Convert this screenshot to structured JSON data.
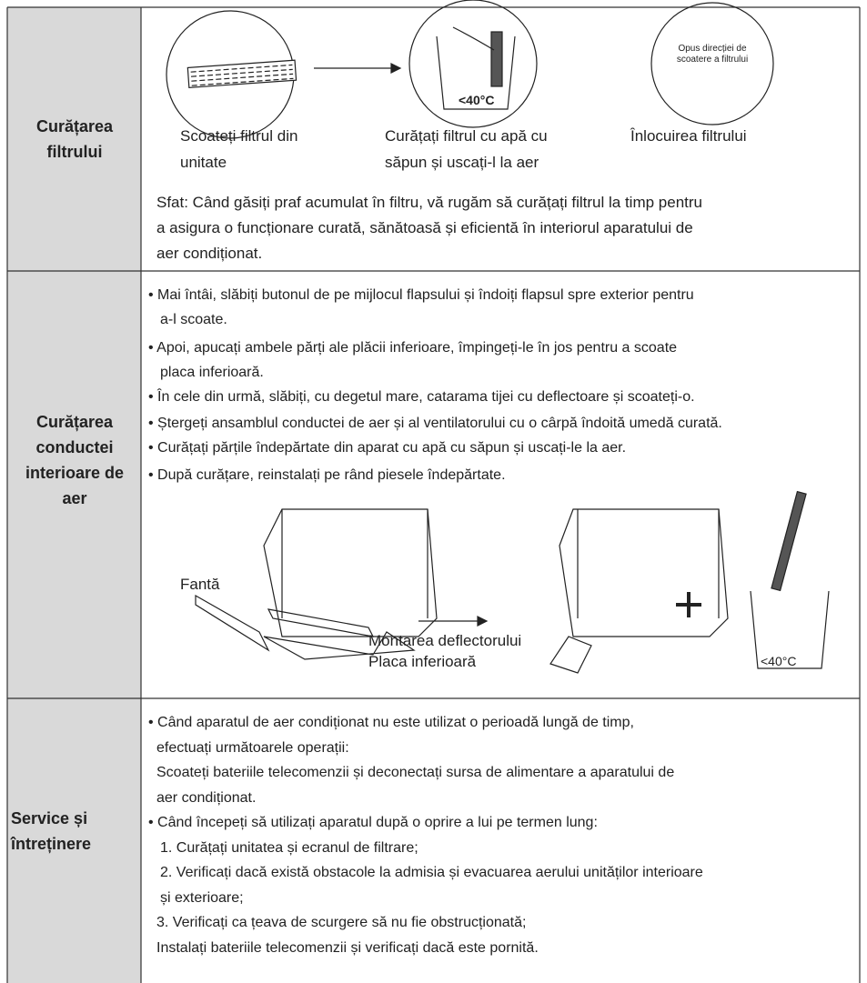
{
  "sections": [
    {
      "heading": "Curățarea filtrului",
      "captions": [
        [
          "Scoateți filtrul din",
          "unitate"
        ],
        [
          "Curățați filtrul cu apă cu",
          "săpun și uscați-l la aer"
        ],
        [
          "Înlocuirea filtrului"
        ]
      ],
      "circle_text": "Opus direcției de scoatere a filtrului",
      "temp_label": "<40°C",
      "tip": [
        "Sfat: Când găsiți praf acumulat în filtru, vă rugăm să curățați filtrul la timp pentru",
        "a asigura o funcționare curată, sănătoasă și eficientă în interiorul aparatului de",
        "aer condiționat."
      ]
    },
    {
      "heading": "Curățarea conductei interioare de aer",
      "lines": [
        "• Mai întâi, slăbiți butonul de pe mijlocul flapsului și îndoiți flapsul spre exterior pentru",
        "a-l scoate.",
        "• Apoi, apucați ambele părți ale plăcii inferioare, împingeți-le în jos pentru a scoate",
        "placa inferioară.",
        "• În cele din urmă, slăbiți, cu degetul mare, catarama tijei cu deflectoare și scoateți-o.",
        "• Ștergeți ansamblul conductei de aer și al ventilatorului cu o cârpă îndoită umedă curată.",
        "• Curățați părțile îndepărtate din aparat cu apă cu săpun și uscați-le la aer.",
        "• După curățare, reinstalați pe rând piesele îndepărtate."
      ],
      "figure_labels": [
        "Fantă",
        "Montarea deflectorului",
        "Placa inferioară",
        "<40°C"
      ]
    },
    {
      "heading": "Service și întreținere",
      "lines": [
        "• Când aparatul de aer condiționat nu este utilizat o perioadă lungă de timp,",
        "efectuați următoarele operații:",
        "Scoateți bateriile telecomenzii și deconectați sursa de alimentare a aparatului de",
        "aer condiționat.",
        "• Când începeți să utilizați aparatul după o oprire a lui pe termen lung:",
        "1. Curățați unitatea și ecranul de filtrare;",
        "2. Verificați dacă există obstacole la admisia și evacuarea aerului unităților interioare",
        "și exterioare;",
        "3. Verificați ca țeava de scurgere să nu fie obstrucționată;",
        "Instalați bateriile telecomenzii și verificați dacă este pornită."
      ]
    }
  ]
}
